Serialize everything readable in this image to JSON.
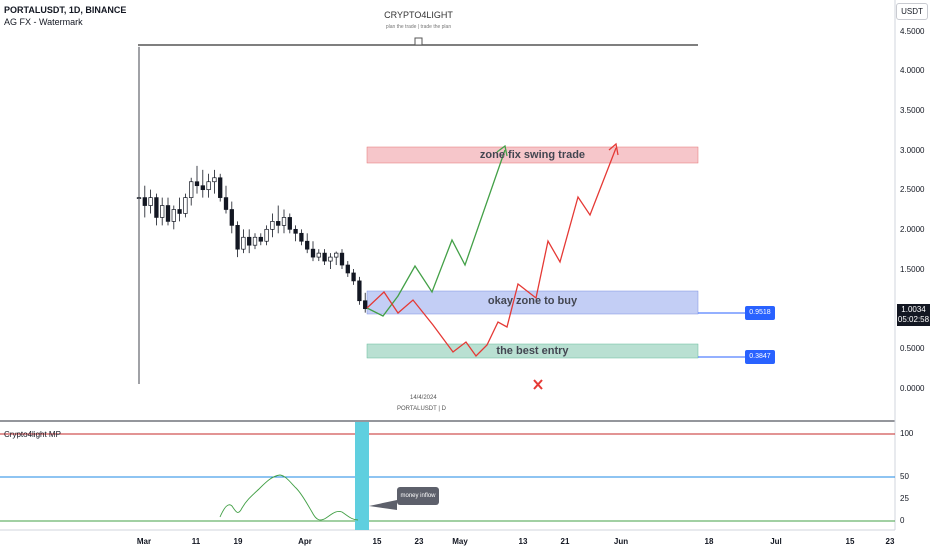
{
  "header": {
    "symbol_line": "PORTALUSDT, 1D, BINANCE",
    "indicator_line": "AG FX - Watermark",
    "watermark_title": "CRYPTO4LIGHT",
    "watermark_subtitle": "plan the trade | trade the plan",
    "currency": "USDT"
  },
  "price_axis": {
    "ticks": [
      "4.5000",
      "4.0000",
      "3.5000",
      "3.0000",
      "2.5000",
      "2.0000",
      "1.5000",
      "1.0000",
      "0.5000",
      "0.0000"
    ],
    "current_price": "1.0034",
    "countdown": "05:02:58"
  },
  "time_axis": {
    "ticks": [
      "Mar",
      "11",
      "19",
      "Apr",
      "15",
      "23",
      "May",
      "13",
      "21",
      "Jun",
      "18",
      "Jul",
      "15",
      "23"
    ]
  },
  "annotations": {
    "zone_top": "zone fix swing trade",
    "zone_mid": "okay zone to buy",
    "zone_low": "the best entry",
    "level_mid": "0.9518",
    "level_low": "0.3847",
    "date_caption": "14/4/2024",
    "symbol_caption": "PORTALUSDT | D",
    "money_label": "money inflow"
  },
  "oscillator": {
    "name": "Crypto4light MP",
    "ticks": [
      "100",
      "50",
      "25",
      "0"
    ]
  },
  "colors": {
    "up": "#ffffff",
    "down": "#131722",
    "green_path": "#43a047",
    "red_path": "#e53935",
    "zone_top": "#f6c6ca",
    "zone_mid": "#c3cef5",
    "zone_low": "#b9e0d2",
    "highlight": "#5fcfdf"
  },
  "chart_data": {
    "type": "candlestick",
    "symbol": "PORTALUSDT",
    "timeframe": "1D",
    "exchange": "BINANCE",
    "ylim": [
      0,
      4.6
    ],
    "candles": [
      {
        "o": 2.4,
        "h": 4.3,
        "l": 0.05,
        "c": 2.4
      },
      {
        "o": 2.4,
        "h": 2.55,
        "l": 2.15,
        "c": 2.3
      },
      {
        "o": 2.3,
        "h": 2.5,
        "l": 2.2,
        "c": 2.4
      },
      {
        "o": 2.4,
        "h": 2.45,
        "l": 2.05,
        "c": 2.15
      },
      {
        "o": 2.15,
        "h": 2.4,
        "l": 2.05,
        "c": 2.3
      },
      {
        "o": 2.3,
        "h": 2.4,
        "l": 2.05,
        "c": 2.1
      },
      {
        "o": 2.1,
        "h": 2.3,
        "l": 2.0,
        "c": 2.25
      },
      {
        "o": 2.25,
        "h": 2.4,
        "l": 2.1,
        "c": 2.2
      },
      {
        "o": 2.2,
        "h": 2.45,
        "l": 2.15,
        "c": 2.4
      },
      {
        "o": 2.4,
        "h": 2.65,
        "l": 2.3,
        "c": 2.6
      },
      {
        "o": 2.6,
        "h": 2.8,
        "l": 2.45,
        "c": 2.55
      },
      {
        "o": 2.55,
        "h": 2.75,
        "l": 2.4,
        "c": 2.5
      },
      {
        "o": 2.5,
        "h": 2.7,
        "l": 2.4,
        "c": 2.6
      },
      {
        "o": 2.6,
        "h": 2.75,
        "l": 2.45,
        "c": 2.65
      },
      {
        "o": 2.65,
        "h": 2.7,
        "l": 2.35,
        "c": 2.4
      },
      {
        "o": 2.4,
        "h": 2.55,
        "l": 2.2,
        "c": 2.25
      },
      {
        "o": 2.25,
        "h": 2.35,
        "l": 1.95,
        "c": 2.05
      },
      {
        "o": 2.05,
        "h": 2.1,
        "l": 1.65,
        "c": 1.75
      },
      {
        "o": 1.75,
        "h": 2.0,
        "l": 1.7,
        "c": 1.9
      },
      {
        "o": 1.9,
        "h": 2.0,
        "l": 1.7,
        "c": 1.8
      },
      {
        "o": 1.8,
        "h": 1.95,
        "l": 1.75,
        "c": 1.9
      },
      {
        "o": 1.9,
        "h": 1.95,
        "l": 1.8,
        "c": 1.85
      },
      {
        "o": 1.85,
        "h": 2.05,
        "l": 1.8,
        "c": 2.0
      },
      {
        "o": 2.0,
        "h": 2.2,
        "l": 1.9,
        "c": 2.1
      },
      {
        "o": 2.1,
        "h": 2.3,
        "l": 1.95,
        "c": 2.05
      },
      {
        "o": 2.05,
        "h": 2.25,
        "l": 1.95,
        "c": 2.15
      },
      {
        "o": 2.15,
        "h": 2.2,
        "l": 1.95,
        "c": 2.0
      },
      {
        "o": 2.0,
        "h": 2.05,
        "l": 1.85,
        "c": 1.95
      },
      {
        "o": 1.95,
        "h": 2.0,
        "l": 1.8,
        "c": 1.85
      },
      {
        "o": 1.85,
        "h": 1.95,
        "l": 1.7,
        "c": 1.75
      },
      {
        "o": 1.75,
        "h": 1.85,
        "l": 1.6,
        "c": 1.65
      },
      {
        "o": 1.65,
        "h": 1.75,
        "l": 1.6,
        "c": 1.7
      },
      {
        "o": 1.7,
        "h": 1.75,
        "l": 1.55,
        "c": 1.6
      },
      {
        "o": 1.6,
        "h": 1.7,
        "l": 1.5,
        "c": 1.65
      },
      {
        "o": 1.65,
        "h": 1.72,
        "l": 1.55,
        "c": 1.7
      },
      {
        "o": 1.7,
        "h": 1.75,
        "l": 1.5,
        "c": 1.55
      },
      {
        "o": 1.55,
        "h": 1.6,
        "l": 1.4,
        "c": 1.45
      },
      {
        "o": 1.45,
        "h": 1.5,
        "l": 1.3,
        "c": 1.35
      },
      {
        "o": 1.35,
        "h": 1.4,
        "l": 1.05,
        "c": 1.1
      },
      {
        "o": 1.1,
        "h": 1.2,
        "l": 0.95,
        "c": 1.0
      }
    ],
    "zones": [
      {
        "label": "zone fix swing trade",
        "from": 2.85,
        "to": 3.05
      },
      {
        "label": "okay zone to buy",
        "from": 0.95,
        "to": 1.25
      },
      {
        "label": "the best entry",
        "from": 0.38,
        "to": 0.55
      }
    ],
    "levels": [
      0.9518,
      0.3847
    ],
    "green_path": [
      1.0,
      1.1,
      0.95,
      1.5,
      1.2,
      1.95,
      1.55,
      3.05
    ],
    "red_path": [
      1.0,
      1.15,
      0.95,
      1.1,
      0.85,
      0.55,
      0.45,
      0.6,
      0.5,
      1.0,
      1.2,
      1.85,
      1.6,
      2.4,
      2.2,
      3.05
    ],
    "oscillator_values": [
      5,
      12,
      8,
      20,
      15,
      28,
      35,
      48,
      55,
      45,
      40,
      25,
      10,
      3,
      2,
      5,
      2
    ],
    "oscillator_ylim": [
      0,
      100
    ]
  }
}
